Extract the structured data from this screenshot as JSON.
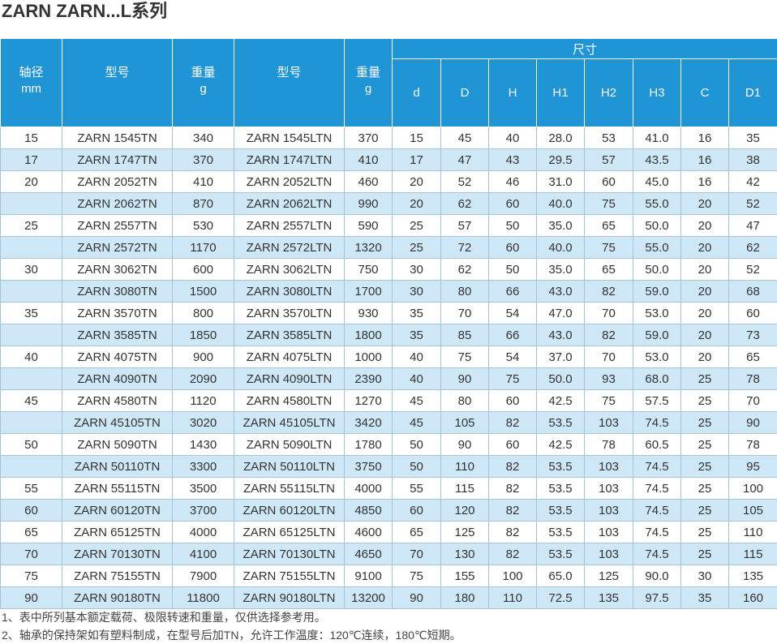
{
  "header": {
    "title": "ZARN ZARN...L系列"
  },
  "table": {
    "group_columns": [
      [
        "轴径",
        "mm"
      ],
      [
        "型号"
      ],
      [
        "重量",
        "g"
      ],
      [
        "型号"
      ],
      [
        "重量",
        "g"
      ]
    ],
    "dimension_group": "尺寸",
    "dimension_columns": [
      "d",
      "D",
      "H",
      "H1",
      "H2",
      "H3",
      "C",
      "D1"
    ],
    "rows": [
      [
        "15",
        "ZARN 1545TN",
        "340",
        "ZARN 1545LTN",
        "370",
        "15",
        "45",
        "40",
        "28.0",
        "53",
        "41.0",
        "16",
        "35"
      ],
      [
        "17",
        "ZARN 1747TN",
        "370",
        "ZARN 1747LTN",
        "410",
        "17",
        "47",
        "43",
        "29.5",
        "57",
        "43.5",
        "16",
        "38"
      ],
      [
        "20",
        "ZARN 2052TN",
        "410",
        "ZARN 2052LTN",
        "460",
        "20",
        "52",
        "46",
        "31.0",
        "60",
        "45.0",
        "16",
        "42"
      ],
      [
        null,
        "ZARN 2062TN",
        "870",
        "ZARN 2062LTN",
        "990",
        "20",
        "62",
        "60",
        "40.0",
        "75",
        "55.0",
        "20",
        "52"
      ],
      [
        "25",
        "ZARN 2557TN",
        "530",
        "ZARN 2557LTN",
        "590",
        "25",
        "57",
        "50",
        "35.0",
        "65",
        "50.0",
        "20",
        "47"
      ],
      [
        null,
        "ZARN 2572TN",
        "1170",
        "ZARN 2572LTN",
        "1320",
        "25",
        "72",
        "60",
        "40.0",
        "75",
        "55.0",
        "20",
        "62"
      ],
      [
        "30",
        "ZARN 3062TN",
        "600",
        "ZARN 3062LTN",
        "750",
        "30",
        "62",
        "50",
        "35.0",
        "65",
        "50.0",
        "20",
        "52"
      ],
      [
        null,
        "ZARN 3080TN",
        "1500",
        "ZARN 3080LTN",
        "1700",
        "30",
        "80",
        "66",
        "43.0",
        "82",
        "59.0",
        "20",
        "68"
      ],
      [
        "35",
        "ZARN 3570TN",
        "800",
        "ZARN 3570LTN",
        "930",
        "35",
        "70",
        "54",
        "47.0",
        "70",
        "53.0",
        "20",
        "60"
      ],
      [
        null,
        "ZARN 3585TN",
        "1850",
        "ZARN 3585LTN",
        "1800",
        "35",
        "85",
        "66",
        "43.0",
        "82",
        "59.0",
        "20",
        "73"
      ],
      [
        "40",
        "ZARN 4075TN",
        "900",
        "ZARN 4075LTN",
        "1000",
        "40",
        "75",
        "54",
        "37.0",
        "70",
        "53.0",
        "20",
        "65"
      ],
      [
        null,
        "ZARN 4090TN",
        "2090",
        "ZARN 4090LTN",
        "2390",
        "40",
        "90",
        "75",
        "50.0",
        "93",
        "68.0",
        "25",
        "78"
      ],
      [
        "45",
        "ZARN 4580TN",
        "1120",
        "ZARN 4580LTN",
        "1270",
        "45",
        "80",
        "60",
        "42.5",
        "75",
        "57.5",
        "25",
        "70"
      ],
      [
        null,
        "ZARN 45105TN",
        "3020",
        "ZARN 45105LTN",
        "3420",
        "45",
        "105",
        "82",
        "53.5",
        "103",
        "74.5",
        "25",
        "90"
      ],
      [
        "50",
        "ZARN 5090TN",
        "1430",
        "ZARN 5090LTN",
        "1780",
        "50",
        "90",
        "60",
        "42.5",
        "78",
        "60.5",
        "25",
        "78"
      ],
      [
        null,
        "ZARN 50110TN",
        "3300",
        "ZARN 50110LTN",
        "3750",
        "50",
        "110",
        "82",
        "53.5",
        "103",
        "74.5",
        "25",
        "95"
      ],
      [
        "55",
        "ZARN 55115TN",
        "3500",
        "ZARN 55115LTN",
        "4000",
        "55",
        "115",
        "82",
        "53.5",
        "103",
        "74.5",
        "25",
        "100"
      ],
      [
        "60",
        "ZARN 60120TN",
        "3700",
        "ZARN 60120LTN",
        "4850",
        "60",
        "120",
        "82",
        "53.5",
        "103",
        "74.5",
        "25",
        "105"
      ],
      [
        "65",
        "ZARN 65125TN",
        "4000",
        "ZARN 65125LTN",
        "4600",
        "65",
        "125",
        "82",
        "53.5",
        "103",
        "74.5",
        "25",
        "110"
      ],
      [
        "70",
        "ZARN 70130TN",
        "4100",
        "ZARN 70130LTN",
        "4650",
        "70",
        "130",
        "82",
        "53.5",
        "103",
        "74.5",
        "25",
        "115"
      ],
      [
        "75",
        "ZARN 75155TN",
        "7900",
        "ZARN 75155LTN",
        "9100",
        "75",
        "155",
        "100",
        "65.0",
        "125",
        "90.0",
        "30",
        "135"
      ],
      [
        "90",
        "ZARN 90180TN",
        "11800",
        "ZARN 90180LTN",
        "13200",
        "90",
        "180",
        "110",
        "72.5",
        "135",
        "97.5",
        "35",
        "160"
      ]
    ]
  },
  "notes": [
    "1、表中所列基本额定载荷、极限转速和重量，仅供选择参考用。",
    "2、轴承的保持架如有塑料制成，在型号后加TN，允许工作温度：120℃连续，180℃短期。"
  ]
}
